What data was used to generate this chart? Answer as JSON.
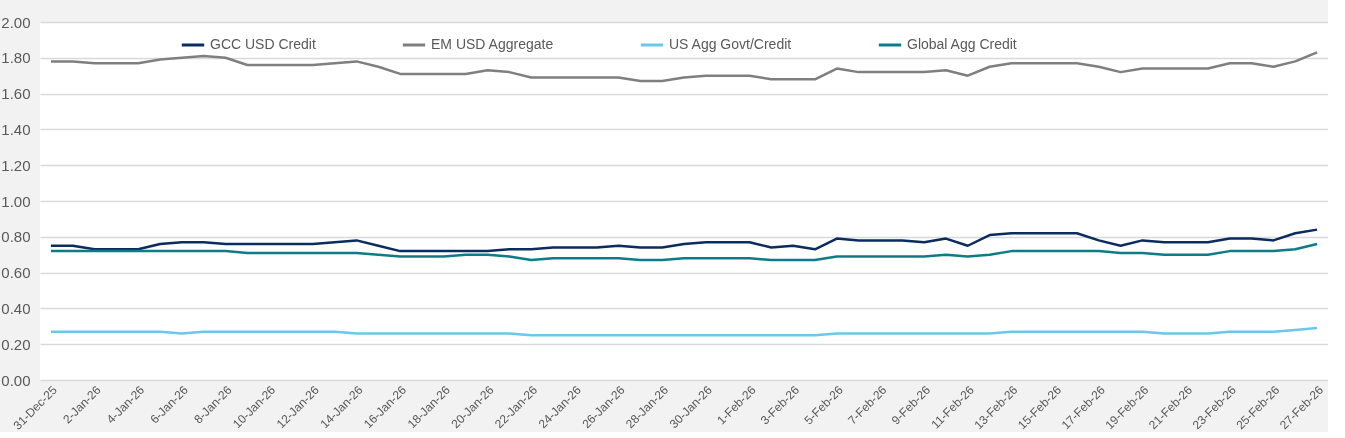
{
  "chart_data": {
    "type": "line",
    "categories": [
      "31-Dec-25",
      null,
      "2-Jan-26",
      null,
      "4-Jan-26",
      null,
      "6-Jan-26",
      null,
      "8-Jan-26",
      null,
      "10-Jan-26",
      null,
      "12-Jan-26",
      null,
      "14-Jan-26",
      null,
      "16-Jan-26",
      null,
      "18-Jan-26",
      null,
      "20-Jan-26",
      null,
      "22-Jan-26",
      null,
      "24-Jan-26",
      null,
      "26-Jan-26",
      null,
      "28-Jan-26",
      null,
      "30-Jan-26",
      null,
      "1-Feb-26",
      null,
      "3-Feb-26",
      null,
      "5-Feb-26",
      null,
      "7-Feb-26",
      null,
      "9-Feb-26",
      null,
      "11-Feb-26",
      null,
      "13-Feb-26",
      null,
      "15-Feb-26",
      null,
      "17-Feb-26",
      null,
      "19-Feb-26",
      null,
      "21-Feb-26",
      null,
      "23-Feb-26",
      null,
      "25-Feb-26",
      null,
      "27-Feb-26"
    ],
    "series": [
      {
        "name": "GCC USD Credit",
        "color": "#0b2c5f",
        "values": [
          0.75,
          0.75,
          0.73,
          0.73,
          0.73,
          0.76,
          0.77,
          0.77,
          0.76,
          0.76,
          0.76,
          0.76,
          0.76,
          0.77,
          0.78,
          0.75,
          0.72,
          0.72,
          0.72,
          0.72,
          0.72,
          0.73,
          0.73,
          0.74,
          0.74,
          0.74,
          0.75,
          0.74,
          0.74,
          0.76,
          0.77,
          0.77,
          0.77,
          0.74,
          0.75,
          0.73,
          0.79,
          0.78,
          0.78,
          0.78,
          0.77,
          0.79,
          0.75,
          0.81,
          0.82,
          0.82,
          0.82,
          0.82,
          0.78,
          0.75,
          0.78,
          0.77,
          0.77,
          0.77,
          0.79,
          0.79,
          0.78,
          0.82,
          0.84
        ]
      },
      {
        "name": "EM USD Aggregate",
        "color": "#7f7f7f",
        "values": [
          1.78,
          1.78,
          1.77,
          1.77,
          1.77,
          1.79,
          1.8,
          1.81,
          1.8,
          1.76,
          1.76,
          1.76,
          1.76,
          1.77,
          1.78,
          1.75,
          1.71,
          1.71,
          1.71,
          1.71,
          1.73,
          1.72,
          1.69,
          1.69,
          1.69,
          1.69,
          1.69,
          1.67,
          1.67,
          1.69,
          1.7,
          1.7,
          1.7,
          1.68,
          1.68,
          1.68,
          1.74,
          1.72,
          1.72,
          1.72,
          1.72,
          1.73,
          1.7,
          1.75,
          1.77,
          1.77,
          1.77,
          1.77,
          1.75,
          1.72,
          1.74,
          1.74,
          1.74,
          1.74,
          1.77,
          1.77,
          1.75,
          1.78,
          1.83
        ]
      },
      {
        "name": "US Agg Govt/Credit",
        "color": "#6ec6ea",
        "values": [
          0.27,
          0.27,
          0.27,
          0.27,
          0.27,
          0.27,
          0.26,
          0.27,
          0.27,
          0.27,
          0.27,
          0.27,
          0.27,
          0.27,
          0.26,
          0.26,
          0.26,
          0.26,
          0.26,
          0.26,
          0.26,
          0.26,
          0.25,
          0.25,
          0.25,
          0.25,
          0.25,
          0.25,
          0.25,
          0.25,
          0.25,
          0.25,
          0.25,
          0.25,
          0.25,
          0.25,
          0.26,
          0.26,
          0.26,
          0.26,
          0.26,
          0.26,
          0.26,
          0.26,
          0.27,
          0.27,
          0.27,
          0.27,
          0.27,
          0.27,
          0.27,
          0.26,
          0.26,
          0.26,
          0.27,
          0.27,
          0.27,
          0.28,
          0.29
        ]
      },
      {
        "name": "Global Agg Credit",
        "color": "#0e7c86",
        "values": [
          0.72,
          0.72,
          0.72,
          0.72,
          0.72,
          0.72,
          0.72,
          0.72,
          0.72,
          0.71,
          0.71,
          0.71,
          0.71,
          0.71,
          0.71,
          0.7,
          0.69,
          0.69,
          0.69,
          0.7,
          0.7,
          0.69,
          0.67,
          0.68,
          0.68,
          0.68,
          0.68,
          0.67,
          0.67,
          0.68,
          0.68,
          0.68,
          0.68,
          0.67,
          0.67,
          0.67,
          0.69,
          0.69,
          0.69,
          0.69,
          0.69,
          0.7,
          0.69,
          0.7,
          0.72,
          0.72,
          0.72,
          0.72,
          0.72,
          0.71,
          0.71,
          0.7,
          0.7,
          0.7,
          0.72,
          0.72,
          0.72,
          0.73,
          0.76
        ]
      }
    ],
    "ylim": [
      0,
      2
    ],
    "yticks": [
      {
        "value": 0,
        "label": "0.00"
      },
      {
        "value": 0.2,
        "label": "0.20"
      },
      {
        "value": 0.4,
        "label": "0.40"
      },
      {
        "value": 0.6,
        "label": "0.60"
      },
      {
        "value": 0.8,
        "label": "0.80"
      },
      {
        "value": 1,
        "label": "1.00"
      },
      {
        "value": 1.2,
        "label": "1.20"
      },
      {
        "value": 1.4,
        "label": "1.40"
      },
      {
        "value": 1.6,
        "label": "1.60"
      },
      {
        "value": 1.8,
        "label": "1.80"
      },
      {
        "value": 2,
        "label": "2.00"
      }
    ],
    "grid": "y",
    "legend": "top",
    "marker": "none",
    "line_style": "solid"
  }
}
